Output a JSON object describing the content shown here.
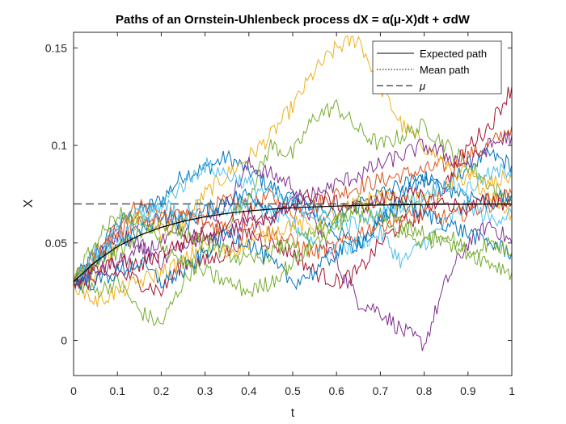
{
  "chart_data": {
    "type": "line",
    "title": "Paths of an Ornstein-Uhlenbeck process dX = α(μ-X)dt + σdW",
    "xlabel": "t",
    "ylabel": "X",
    "xlim": [
      0,
      1
    ],
    "ylim": [
      -0.018,
      0.158
    ],
    "xticks": [
      0,
      0.1,
      0.2,
      0.3,
      0.4,
      0.5,
      0.6,
      0.7,
      0.8,
      0.9,
      1
    ],
    "xtick_labels": [
      "0",
      "0.1",
      "0.2",
      "0.3",
      "0.4",
      "0.5",
      "0.6",
      "0.7",
      "0.8",
      "0.9",
      "1"
    ],
    "yticks": [
      0,
      0.05,
      0.1,
      0.15
    ],
    "ytick_labels": [
      "0",
      "0.05",
      "0.1",
      "0.15"
    ],
    "grid": false,
    "legend_position": "top-right",
    "legend": [
      {
        "label": "Expected path",
        "style": "solid",
        "color": "#000000"
      },
      {
        "label": "Mean path",
        "style": "dotted",
        "color": "#000000"
      },
      {
        "label": "μ",
        "style": "dashed",
        "color": "#000000"
      }
    ],
    "mu": 0.07,
    "x0": 0.03,
    "expected_path": {
      "x": [
        0,
        0.05,
        0.1,
        0.15,
        0.2,
        0.25,
        0.3,
        0.35,
        0.4,
        0.45,
        0.5,
        0.55,
        0.6,
        0.65,
        0.7,
        0.75,
        0.8,
        0.85,
        0.9,
        0.95,
        1
      ],
      "y": [
        0.03,
        0.0404,
        0.0481,
        0.0538,
        0.058,
        0.0611,
        0.0634,
        0.0651,
        0.0664,
        0.0673,
        0.068,
        0.0685,
        0.0689,
        0.0692,
        0.0694,
        0.0696,
        0.0697,
        0.0698,
        0.0698,
        0.0699,
        0.0699
      ]
    },
    "x": [
      0,
      0.05,
      0.1,
      0.15,
      0.2,
      0.25,
      0.3,
      0.35,
      0.4,
      0.45,
      0.5,
      0.55,
      0.6,
      0.65,
      0.7,
      0.75,
      0.8,
      0.85,
      0.9,
      0.95,
      1
    ],
    "series": [
      {
        "color": "#0072BD",
        "values": [
          0.03,
          0.044,
          0.06,
          0.066,
          0.072,
          0.085,
          0.088,
          0.094,
          0.087,
          0.079,
          0.072,
          0.066,
          0.055,
          0.05,
          0.06,
          0.075,
          0.085,
          0.078,
          0.09,
          0.095,
          0.09
        ]
      },
      {
        "color": "#D95319",
        "values": [
          0.03,
          0.04,
          0.06,
          0.07,
          0.065,
          0.062,
          0.067,
          0.071,
          0.069,
          0.074,
          0.066,
          0.069,
          0.075,
          0.079,
          0.082,
          0.085,
          0.087,
          0.09,
          0.095,
          0.1,
          0.11
        ]
      },
      {
        "color": "#EDB120",
        "values": [
          0.03,
          0.035,
          0.05,
          0.065,
          0.055,
          0.06,
          0.075,
          0.085,
          0.094,
          0.105,
          0.12,
          0.138,
          0.15,
          0.155,
          0.13,
          0.11,
          0.1,
          0.09,
          0.085,
          0.075,
          0.065
        ]
      },
      {
        "color": "#7E2F8E",
        "values": [
          0.03,
          0.04,
          0.055,
          0.05,
          0.04,
          0.05,
          0.06,
          0.07,
          0.09,
          0.085,
          0.08,
          0.06,
          0.04,
          0.02,
          0.015,
          0.005,
          -0.002,
          0.03,
          0.05,
          0.06,
          0.05
        ]
      },
      {
        "color": "#77AC30",
        "values": [
          0.03,
          0.025,
          0.03,
          0.015,
          0.008,
          0.03,
          0.045,
          0.06,
          0.075,
          0.1,
          0.095,
          0.115,
          0.12,
          0.108,
          0.1,
          0.105,
          0.11,
          0.1,
          0.09,
          0.08,
          0.07
        ]
      },
      {
        "color": "#4DBEEE",
        "values": [
          0.03,
          0.038,
          0.06,
          0.065,
          0.07,
          0.065,
          0.07,
          0.067,
          0.07,
          0.064,
          0.06,
          0.05,
          0.045,
          0.05,
          0.055,
          0.04,
          0.05,
          0.06,
          0.07,
          0.062,
          0.065
        ]
      },
      {
        "color": "#A2142F",
        "values": [
          0.03,
          0.03,
          0.035,
          0.03,
          0.025,
          0.04,
          0.04,
          0.045,
          0.055,
          0.05,
          0.045,
          0.035,
          0.03,
          0.035,
          0.05,
          0.06,
          0.065,
          0.08,
          0.1,
          0.11,
          0.13
        ]
      },
      {
        "color": "#0072BD",
        "values": [
          0.03,
          0.038,
          0.05,
          0.055,
          0.065,
          0.06,
          0.066,
          0.072,
          0.075,
          0.068,
          0.07,
          0.068,
          0.063,
          0.07,
          0.075,
          0.08,
          0.082,
          0.078,
          0.075,
          0.07,
          0.075
        ]
      },
      {
        "color": "#D95319",
        "values": [
          0.03,
          0.045,
          0.055,
          0.062,
          0.06,
          0.065,
          0.06,
          0.058,
          0.06,
          0.055,
          0.05,
          0.045,
          0.048,
          0.055,
          0.06,
          0.062,
          0.065,
          0.063,
          0.066,
          0.07,
          0.075
        ]
      },
      {
        "color": "#EDB120",
        "values": [
          0.03,
          0.02,
          0.025,
          0.03,
          0.035,
          0.04,
          0.05,
          0.045,
          0.05,
          0.055,
          0.06,
          0.058,
          0.065,
          0.07,
          0.075,
          0.07,
          0.072,
          0.078,
          0.085,
          0.08,
          0.085
        ]
      },
      {
        "color": "#7E2F8E",
        "values": [
          0.03,
          0.035,
          0.04,
          0.045,
          0.05,
          0.055,
          0.05,
          0.055,
          0.06,
          0.065,
          0.07,
          0.075,
          0.08,
          0.085,
          0.09,
          0.095,
          0.1,
          0.095,
          0.09,
          0.1,
          0.105
        ]
      },
      {
        "color": "#77AC30",
        "values": [
          0.03,
          0.04,
          0.045,
          0.055,
          0.06,
          0.055,
          0.05,
          0.045,
          0.04,
          0.045,
          0.05,
          0.055,
          0.06,
          0.065,
          0.06,
          0.055,
          0.05,
          0.055,
          0.045,
          0.04,
          0.035
        ]
      },
      {
        "color": "#4DBEEE",
        "values": [
          0.03,
          0.045,
          0.05,
          0.06,
          0.07,
          0.08,
          0.09,
          0.085,
          0.08,
          0.075,
          0.07,
          0.065,
          0.06,
          0.06,
          0.065,
          0.07,
          0.075,
          0.08,
          0.078,
          0.085,
          0.088
        ]
      },
      {
        "color": "#A2142F",
        "values": [
          0.03,
          0.035,
          0.04,
          0.038,
          0.045,
          0.05,
          0.055,
          0.06,
          0.065,
          0.06,
          0.07,
          0.075,
          0.07,
          0.068,
          0.072,
          0.075,
          0.073,
          0.07,
          0.068,
          0.072,
          0.07
        ]
      },
      {
        "color": "#0072BD",
        "values": [
          0.03,
          0.03,
          0.035,
          0.04,
          0.03,
          0.035,
          0.045,
          0.055,
          0.05,
          0.04,
          0.03,
          0.035,
          0.045,
          0.05,
          0.06,
          0.07,
          0.065,
          0.06,
          0.055,
          0.05,
          0.045
        ]
      },
      {
        "color": "#77AC30",
        "values": [
          0.03,
          0.05,
          0.065,
          0.06,
          0.05,
          0.04,
          0.035,
          0.03,
          0.025,
          0.03,
          0.04,
          0.05,
          0.06,
          0.07,
          0.065,
          0.06,
          0.055,
          0.05,
          0.045,
          0.05,
          0.045
        ]
      }
    ]
  }
}
